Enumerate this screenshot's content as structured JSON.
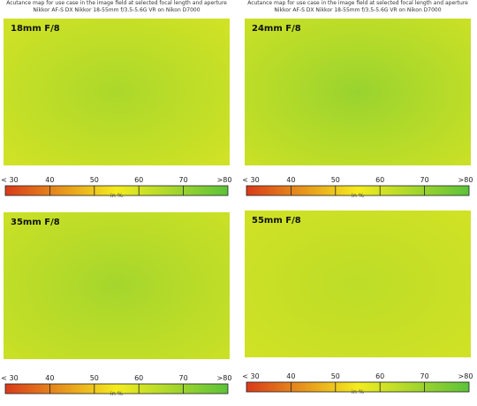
{
  "chart_data": [
    {
      "type": "heatmap",
      "title": "Acutance map for use case in the image field at selected focal length and aperture\nNikkor AF-S DX Nikkor 18-55mm f/3.5-5.6G VR on Nikon D7000",
      "label": "18mm F/8",
      "center_value": 67,
      "edge_value": 61,
      "scale": {
        "ticks": [
          "< 30",
          "40",
          "50",
          "60",
          "70",
          ">80"
        ],
        "min": 30,
        "max": 80,
        "unit": "in %"
      }
    },
    {
      "type": "heatmap",
      "title": "Acutance map for use case in the image field at selected focal length and aperture\nNikkor AF-S DX Nikkor 18-55mm f/3.5-5.6G VR on Nikon D7000",
      "label": "24mm F/8",
      "center_value": 70,
      "edge_value": 62,
      "scale": {
        "ticks": [
          "< 30",
          "40",
          "50",
          "60",
          "70",
          ">80"
        ],
        "min": 30,
        "max": 80,
        "unit": "in %"
      }
    },
    {
      "type": "heatmap",
      "title": "",
      "label": "35mm F/8",
      "center_value": 68,
      "edge_value": 62,
      "scale": {
        "ticks": [
          "< 30",
          "40",
          "50",
          "60",
          "70",
          ">80"
        ],
        "min": 30,
        "max": 80,
        "unit": "in %"
      }
    },
    {
      "type": "heatmap",
      "title": "",
      "label": "55mm F/8",
      "center_value": 64,
      "edge_value": 61,
      "scale": {
        "ticks": [
          "< 30",
          "40",
          "50",
          "60",
          "70",
          ">80"
        ],
        "min": 30,
        "max": 80,
        "unit": "in %"
      }
    }
  ],
  "colors": {
    "scale_low": "#d93a1a",
    "scale_mid": "#f4ec1e",
    "scale_high": "#5cc23a"
  }
}
